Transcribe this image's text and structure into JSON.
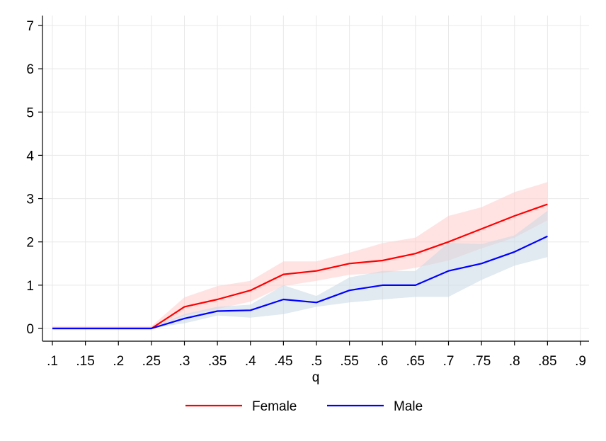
{
  "chart_data": {
    "type": "line",
    "xlabel": "q",
    "ylabel": "",
    "xlim": [
      0.1,
      0.9
    ],
    "ylim": [
      0,
      7
    ],
    "x_ticks": [
      0.1,
      0.15,
      0.2,
      0.25,
      0.3,
      0.35,
      0.4,
      0.45,
      0.5,
      0.55,
      0.6,
      0.65,
      0.7,
      0.75,
      0.8,
      0.85,
      0.9
    ],
    "x_tick_labels": [
      ".1",
      ".15",
      ".2",
      ".25",
      ".3",
      ".35",
      ".4",
      ".45",
      ".5",
      ".55",
      ".6",
      ".65",
      ".7",
      ".75",
      ".8",
      ".85",
      ".9"
    ],
    "y_ticks": [
      0,
      1,
      2,
      3,
      4,
      5,
      6,
      7
    ],
    "y_tick_labels": [
      "0",
      "1",
      "2",
      "3",
      "4",
      "5",
      "6",
      "7"
    ],
    "grid": true,
    "legend_position": "bottom",
    "x": [
      0.1,
      0.15,
      0.2,
      0.25,
      0.3,
      0.35,
      0.4,
      0.45,
      0.5,
      0.55,
      0.6,
      0.65,
      0.7,
      0.75,
      0.8,
      0.85
    ],
    "series": [
      {
        "name": "Female",
        "color": "#ff0000",
        "band_color": "#ffcccc",
        "values": [
          0,
          0,
          0,
          0,
          0.5,
          0.67,
          0.88,
          1.25,
          1.33,
          1.5,
          1.57,
          1.73,
          2.0,
          2.3,
          2.6,
          2.87
        ],
        "lower": [
          0,
          0,
          0,
          0,
          0.3,
          0.45,
          0.62,
          0.98,
          1.1,
          1.24,
          1.28,
          1.4,
          1.57,
          1.85,
          2.1,
          2.5
        ],
        "upper": [
          0.05,
          0.05,
          0.05,
          0.05,
          0.72,
          0.98,
          1.1,
          1.55,
          1.55,
          1.75,
          1.97,
          2.1,
          2.6,
          2.8,
          3.15,
          3.38
        ]
      },
      {
        "name": "Male",
        "color": "#0000ff",
        "band_color": "#c8d8e4",
        "values": [
          0,
          0,
          0,
          0,
          0.23,
          0.4,
          0.42,
          0.67,
          0.6,
          0.88,
          1.0,
          1.0,
          1.33,
          1.5,
          1.77,
          2.13
        ],
        "lower": [
          0,
          0,
          0,
          0,
          0.12,
          0.3,
          0.25,
          0.33,
          0.5,
          0.6,
          0.67,
          0.73,
          0.73,
          1.12,
          1.45,
          1.65
        ],
        "upper": [
          0.02,
          0.02,
          0.02,
          0.02,
          0.33,
          0.5,
          0.55,
          1.0,
          0.75,
          1.18,
          1.33,
          1.33,
          1.98,
          1.95,
          2.15,
          2.72
        ]
      }
    ]
  }
}
